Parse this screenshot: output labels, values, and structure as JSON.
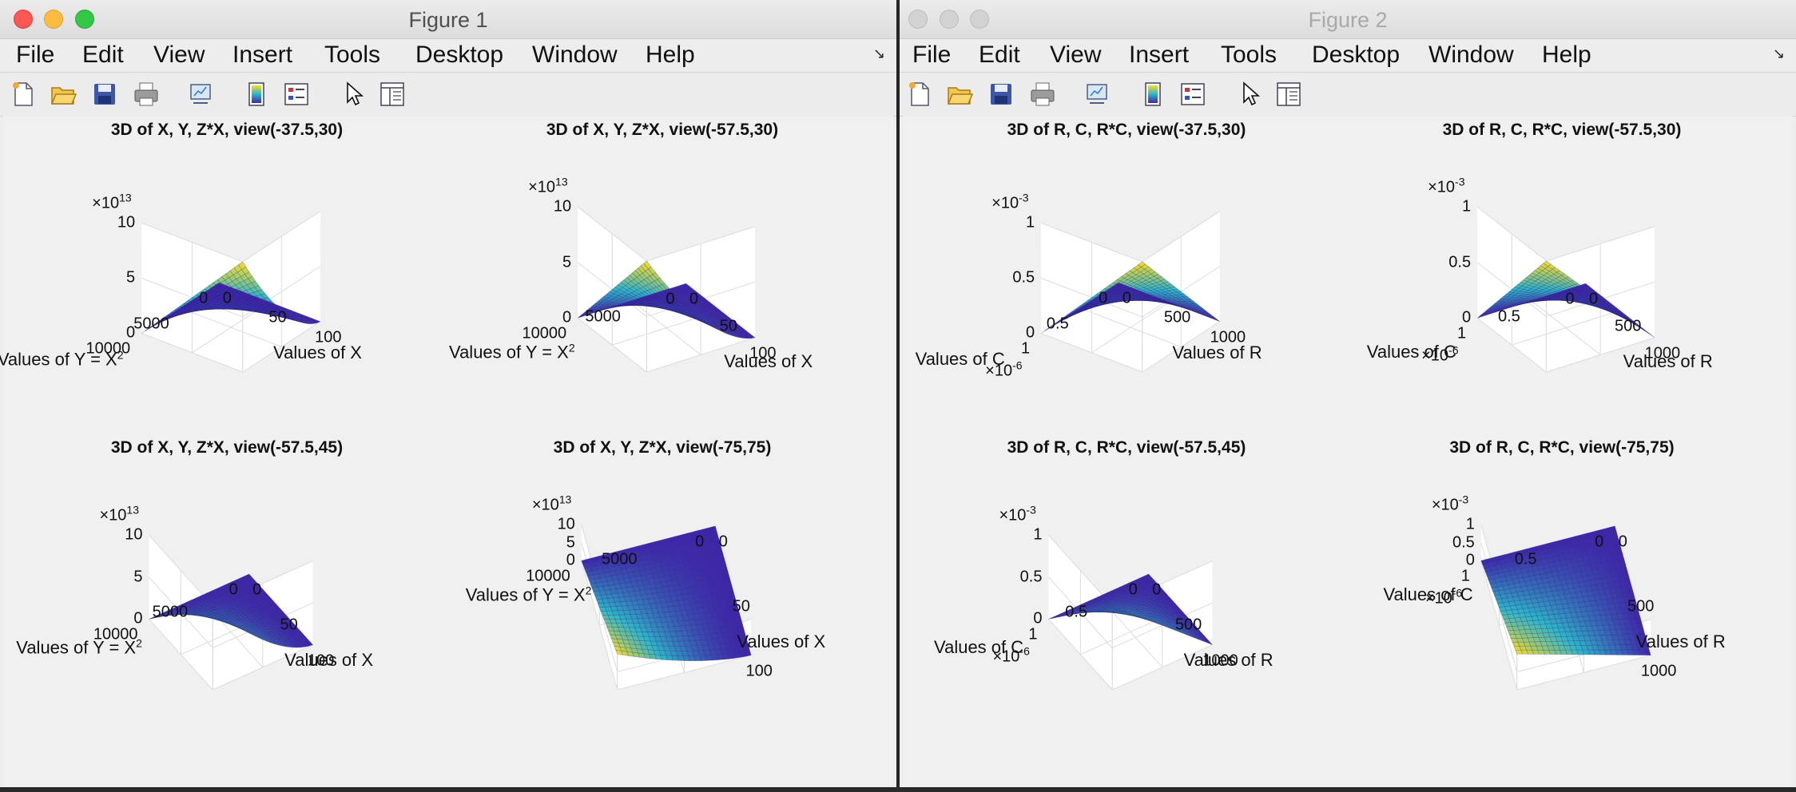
{
  "menu": [
    "File",
    "Edit",
    "View",
    "Insert",
    "Tools",
    "Desktop",
    "Window",
    "Help"
  ],
  "icons": [
    "new-figure-icon",
    "open-file-icon",
    "save-icon",
    "print-icon",
    "link-plot-icon",
    "colorbar-icon",
    "legend-icon",
    "pointer-icon",
    "property-editor-icon"
  ],
  "colors": {
    "low": "#3e26a8",
    "mid": "#2bb6c8",
    "high": "#f9de22",
    "close": "#fc5753",
    "minimize": "#fdbc40",
    "zoom": "#33c748"
  },
  "figures": [
    {
      "title": "Figure 1",
      "active": true,
      "plots": [
        {
          "title": "3D of X, Y, Z*X, view(-37.5,30)",
          "view": [
            -37.5,
            30
          ],
          "x_label": "Values of X",
          "y_label": "Values of Y = X",
          "y_label_sup": "2",
          "z_exponent": "×10",
          "z_exponent_sup": "13",
          "x_ticks": [
            "0",
            "50",
            "100"
          ],
          "y_ticks": [
            "0",
            "5000",
            "10000"
          ],
          "z_ticks": [
            "0",
            "5",
            "10"
          ]
        },
        {
          "title": "3D of X, Y, Z*X, view(-57.5,30)",
          "view": [
            -57.5,
            30
          ],
          "x_label": "Values of X",
          "y_label": "Values of Y = X",
          "y_label_sup": "2",
          "z_exponent": "×10",
          "z_exponent_sup": "13",
          "x_ticks": [
            "0",
            "50",
            "100"
          ],
          "y_ticks": [
            "0",
            "5000",
            "10000"
          ],
          "z_ticks": [
            "0",
            "5",
            "10"
          ]
        },
        {
          "title": "3D of X, Y, Z*X, view(-57.5,45)",
          "view": [
            -57.5,
            45
          ],
          "x_label": "Values of X",
          "y_label": "Values of Y = X",
          "y_label_sup": "2",
          "z_exponent": "×10",
          "z_exponent_sup": "13",
          "x_ticks": [
            "0",
            "50",
            "100"
          ],
          "y_ticks": [
            "0",
            "5000",
            "10000"
          ],
          "z_ticks": [
            "0",
            "5",
            "10"
          ]
        },
        {
          "title": "3D of X, Y, Z*X, view(-75,75)",
          "view": [
            -75,
            75
          ],
          "x_label": "Values of X",
          "y_label": "Values of Y = X",
          "y_label_sup": "2",
          "z_exponent": "×10",
          "z_exponent_sup": "13",
          "x_ticks": [
            "0",
            "50",
            "100"
          ],
          "y_ticks": [
            "0",
            "5000",
            "10000"
          ],
          "z_ticks": [
            "0",
            "5",
            "10"
          ]
        }
      ]
    },
    {
      "title": "Figure 2",
      "active": false,
      "plots": [
        {
          "title": "3D of R, C, R*C, view(-37.5,30)",
          "view": [
            -37.5,
            30
          ],
          "x_label": "Values of R",
          "y_label": "Values of C",
          "y_label_sup": "",
          "z_exponent": "×10",
          "z_exponent_sup": "-3",
          "y_exponent": "×10",
          "y_exponent_sup": "-6",
          "x_ticks": [
            "0",
            "500",
            "1000"
          ],
          "y_ticks": [
            "0",
            "0.5",
            "1"
          ],
          "z_ticks": [
            "0",
            "0.5",
            "1"
          ]
        },
        {
          "title": "3D of R, C, R*C, view(-57.5,30)",
          "view": [
            -57.5,
            30
          ],
          "x_label": "Values of R",
          "y_label": "Values of C",
          "y_label_sup": "",
          "z_exponent": "×10",
          "z_exponent_sup": "-3",
          "y_exponent": "×10",
          "y_exponent_sup": "-6",
          "x_ticks": [
            "0",
            "500",
            "1000"
          ],
          "y_ticks": [
            "0",
            "0.5",
            "1"
          ],
          "z_ticks": [
            "0",
            "0.5",
            "1"
          ]
        },
        {
          "title": "3D of R, C, R*C, view(-57.5,45)",
          "view": [
            -57.5,
            45
          ],
          "x_label": "Values of R",
          "y_label": "Values of C",
          "y_label_sup": "",
          "z_exponent": "×10",
          "z_exponent_sup": "-3",
          "y_exponent": "×10",
          "y_exponent_sup": "-6",
          "x_ticks": [
            "0",
            "500",
            "1000"
          ],
          "y_ticks": [
            "0",
            "0.5",
            "1"
          ],
          "z_ticks": [
            "0",
            "0.5",
            "1"
          ]
        },
        {
          "title": "3D of R, C, R*C, view(-75,75)",
          "view": [
            -75,
            75
          ],
          "x_label": "Values of R",
          "y_label": "Values of C",
          "y_label_sup": "",
          "z_exponent": "×10",
          "z_exponent_sup": "-3",
          "y_exponent": "×10",
          "y_exponent_sup": "-6",
          "x_ticks": [
            "0",
            "500",
            "1000"
          ],
          "y_ticks": [
            "0",
            "0.5",
            "1"
          ],
          "z_ticks": [
            "0",
            "0.5",
            "1"
          ]
        }
      ]
    }
  ]
}
